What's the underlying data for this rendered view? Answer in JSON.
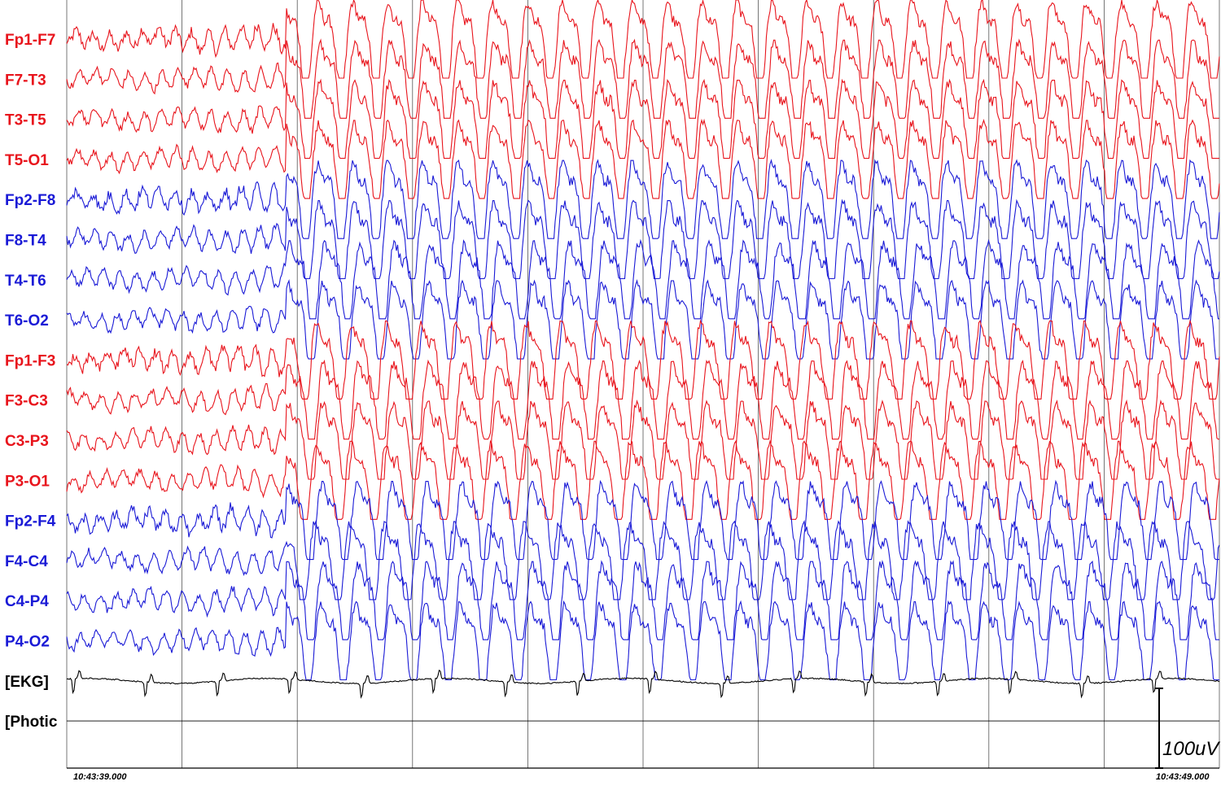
{
  "chart_data": {
    "type": "line",
    "title": "",
    "xlabel": "",
    "ylabel": "",
    "time_start": "10:43:39.000",
    "time_end": "10:43:49.000",
    "duration_seconds": 10,
    "grid_seconds": 1,
    "seizure_onset_seconds": 1.9,
    "scale_bar_label": "100uV",
    "colors": {
      "left": "#e8141c",
      "right": "#1a1ad6",
      "ekg": "#000000",
      "grid": "#555555"
    },
    "series": [
      {
        "name": "Fp1-F7",
        "side": "left"
      },
      {
        "name": "F7-T3",
        "side": "left"
      },
      {
        "name": "T3-T5",
        "side": "left"
      },
      {
        "name": "T5-O1",
        "side": "left"
      },
      {
        "name": "Fp2-F8",
        "side": "right"
      },
      {
        "name": "F8-T4",
        "side": "right"
      },
      {
        "name": "T4-T6",
        "side": "right"
      },
      {
        "name": "T6-O2",
        "side": "right"
      },
      {
        "name": "Fp1-F3",
        "side": "left"
      },
      {
        "name": "F3-C3",
        "side": "left"
      },
      {
        "name": "C3-P3",
        "side": "left"
      },
      {
        "name": "P3-O1",
        "side": "left"
      },
      {
        "name": "Fp2-F4",
        "side": "right"
      },
      {
        "name": "F4-C4",
        "side": "right"
      },
      {
        "name": "C4-P4",
        "side": "right"
      },
      {
        "name": "P4-O2",
        "side": "right"
      },
      {
        "name": "[EKG]",
        "side": "ekg"
      },
      {
        "name": "[Photic",
        "side": "photic"
      }
    ]
  }
}
